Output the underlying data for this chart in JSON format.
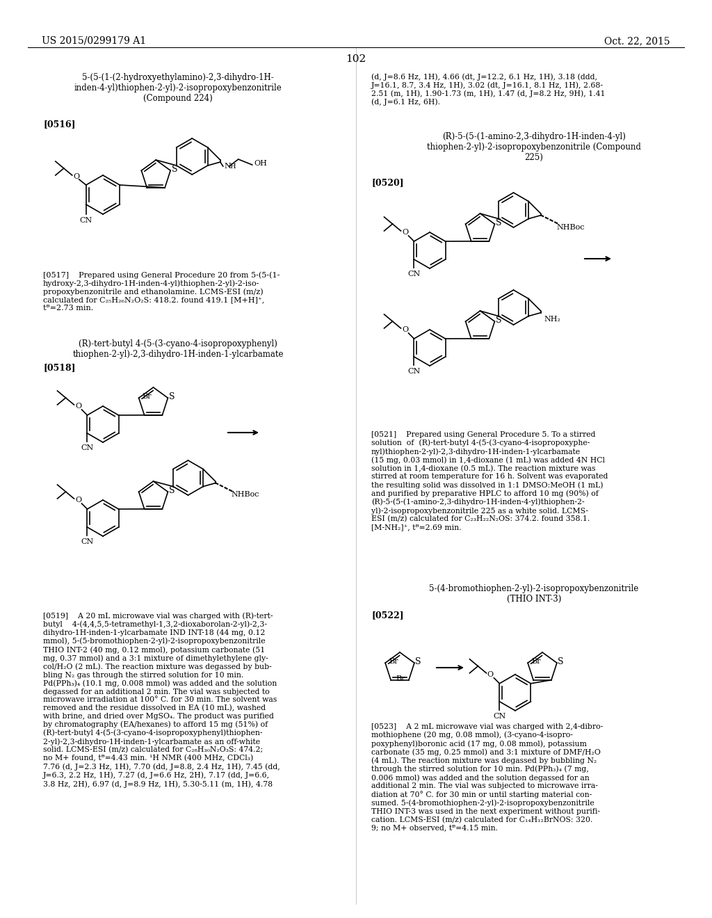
{
  "bg_color": "#ffffff",
  "header_left": "US 2015/0299179 A1",
  "header_right": "Oct. 22, 2015",
  "page_number": "102"
}
